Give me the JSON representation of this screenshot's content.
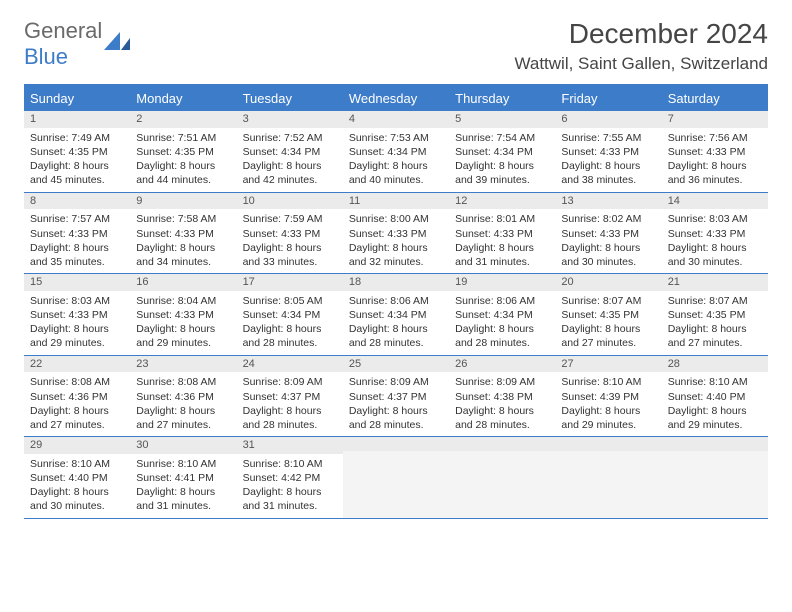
{
  "logo": {
    "part1": "General",
    "part2": "Blue"
  },
  "header": {
    "month_title": "December 2024",
    "location": "Wattwil, Saint Gallen, Switzerland"
  },
  "colors": {
    "accent": "#3d7cc9",
    "daynum_bg": "#ebebeb",
    "empty_bg": "#f4f4f4"
  },
  "weekdays": [
    "Sunday",
    "Monday",
    "Tuesday",
    "Wednesday",
    "Thursday",
    "Friday",
    "Saturday"
  ],
  "weeks": [
    [
      {
        "n": "1",
        "sunrise": "Sunrise: 7:49 AM",
        "sunset": "Sunset: 4:35 PM",
        "day": "Daylight: 8 hours and 45 minutes."
      },
      {
        "n": "2",
        "sunrise": "Sunrise: 7:51 AM",
        "sunset": "Sunset: 4:35 PM",
        "day": "Daylight: 8 hours and 44 minutes."
      },
      {
        "n": "3",
        "sunrise": "Sunrise: 7:52 AM",
        "sunset": "Sunset: 4:34 PM",
        "day": "Daylight: 8 hours and 42 minutes."
      },
      {
        "n": "4",
        "sunrise": "Sunrise: 7:53 AM",
        "sunset": "Sunset: 4:34 PM",
        "day": "Daylight: 8 hours and 40 minutes."
      },
      {
        "n": "5",
        "sunrise": "Sunrise: 7:54 AM",
        "sunset": "Sunset: 4:34 PM",
        "day": "Daylight: 8 hours and 39 minutes."
      },
      {
        "n": "6",
        "sunrise": "Sunrise: 7:55 AM",
        "sunset": "Sunset: 4:33 PM",
        "day": "Daylight: 8 hours and 38 minutes."
      },
      {
        "n": "7",
        "sunrise": "Sunrise: 7:56 AM",
        "sunset": "Sunset: 4:33 PM",
        "day": "Daylight: 8 hours and 36 minutes."
      }
    ],
    [
      {
        "n": "8",
        "sunrise": "Sunrise: 7:57 AM",
        "sunset": "Sunset: 4:33 PM",
        "day": "Daylight: 8 hours and 35 minutes."
      },
      {
        "n": "9",
        "sunrise": "Sunrise: 7:58 AM",
        "sunset": "Sunset: 4:33 PM",
        "day": "Daylight: 8 hours and 34 minutes."
      },
      {
        "n": "10",
        "sunrise": "Sunrise: 7:59 AM",
        "sunset": "Sunset: 4:33 PM",
        "day": "Daylight: 8 hours and 33 minutes."
      },
      {
        "n": "11",
        "sunrise": "Sunrise: 8:00 AM",
        "sunset": "Sunset: 4:33 PM",
        "day": "Daylight: 8 hours and 32 minutes."
      },
      {
        "n": "12",
        "sunrise": "Sunrise: 8:01 AM",
        "sunset": "Sunset: 4:33 PM",
        "day": "Daylight: 8 hours and 31 minutes."
      },
      {
        "n": "13",
        "sunrise": "Sunrise: 8:02 AM",
        "sunset": "Sunset: 4:33 PM",
        "day": "Daylight: 8 hours and 30 minutes."
      },
      {
        "n": "14",
        "sunrise": "Sunrise: 8:03 AM",
        "sunset": "Sunset: 4:33 PM",
        "day": "Daylight: 8 hours and 30 minutes."
      }
    ],
    [
      {
        "n": "15",
        "sunrise": "Sunrise: 8:03 AM",
        "sunset": "Sunset: 4:33 PM",
        "day": "Daylight: 8 hours and 29 minutes."
      },
      {
        "n": "16",
        "sunrise": "Sunrise: 8:04 AM",
        "sunset": "Sunset: 4:33 PM",
        "day": "Daylight: 8 hours and 29 minutes."
      },
      {
        "n": "17",
        "sunrise": "Sunrise: 8:05 AM",
        "sunset": "Sunset: 4:34 PM",
        "day": "Daylight: 8 hours and 28 minutes."
      },
      {
        "n": "18",
        "sunrise": "Sunrise: 8:06 AM",
        "sunset": "Sunset: 4:34 PM",
        "day": "Daylight: 8 hours and 28 minutes."
      },
      {
        "n": "19",
        "sunrise": "Sunrise: 8:06 AM",
        "sunset": "Sunset: 4:34 PM",
        "day": "Daylight: 8 hours and 28 minutes."
      },
      {
        "n": "20",
        "sunrise": "Sunrise: 8:07 AM",
        "sunset": "Sunset: 4:35 PM",
        "day": "Daylight: 8 hours and 27 minutes."
      },
      {
        "n": "21",
        "sunrise": "Sunrise: 8:07 AM",
        "sunset": "Sunset: 4:35 PM",
        "day": "Daylight: 8 hours and 27 minutes."
      }
    ],
    [
      {
        "n": "22",
        "sunrise": "Sunrise: 8:08 AM",
        "sunset": "Sunset: 4:36 PM",
        "day": "Daylight: 8 hours and 27 minutes."
      },
      {
        "n": "23",
        "sunrise": "Sunrise: 8:08 AM",
        "sunset": "Sunset: 4:36 PM",
        "day": "Daylight: 8 hours and 27 minutes."
      },
      {
        "n": "24",
        "sunrise": "Sunrise: 8:09 AM",
        "sunset": "Sunset: 4:37 PM",
        "day": "Daylight: 8 hours and 28 minutes."
      },
      {
        "n": "25",
        "sunrise": "Sunrise: 8:09 AM",
        "sunset": "Sunset: 4:37 PM",
        "day": "Daylight: 8 hours and 28 minutes."
      },
      {
        "n": "26",
        "sunrise": "Sunrise: 8:09 AM",
        "sunset": "Sunset: 4:38 PM",
        "day": "Daylight: 8 hours and 28 minutes."
      },
      {
        "n": "27",
        "sunrise": "Sunrise: 8:10 AM",
        "sunset": "Sunset: 4:39 PM",
        "day": "Daylight: 8 hours and 29 minutes."
      },
      {
        "n": "28",
        "sunrise": "Sunrise: 8:10 AM",
        "sunset": "Sunset: 4:40 PM",
        "day": "Daylight: 8 hours and 29 minutes."
      }
    ],
    [
      {
        "n": "29",
        "sunrise": "Sunrise: 8:10 AM",
        "sunset": "Sunset: 4:40 PM",
        "day": "Daylight: 8 hours and 30 minutes."
      },
      {
        "n": "30",
        "sunrise": "Sunrise: 8:10 AM",
        "sunset": "Sunset: 4:41 PM",
        "day": "Daylight: 8 hours and 31 minutes."
      },
      {
        "n": "31",
        "sunrise": "Sunrise: 8:10 AM",
        "sunset": "Sunset: 4:42 PM",
        "day": "Daylight: 8 hours and 31 minutes."
      },
      null,
      null,
      null,
      null
    ]
  ]
}
